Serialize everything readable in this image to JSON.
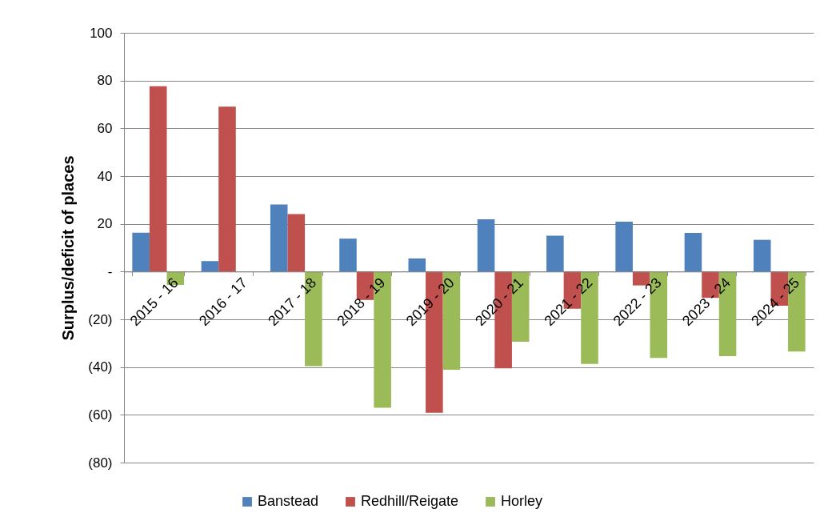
{
  "chart_data": {
    "type": "bar",
    "ylabel": "Surplus/deficit of places",
    "categories": [
      "2015 - 16",
      "2016 - 17",
      "2017 - 18",
      "2018 - 19",
      "2019 - 20",
      "2020 - 21",
      "2021 - 22",
      "2022 - 23",
      "2023 - 24",
      "2024 - 25"
    ],
    "series": [
      {
        "name": "Banstead",
        "color": "#4f81bd",
        "values": [
          16.3,
          4.4,
          28.1,
          13.8,
          5.5,
          21.9,
          15,
          20.9,
          16.2,
          13.3
        ]
      },
      {
        "name": "Redhill/Reigate",
        "color": "#c0504d",
        "values": [
          77.6,
          69.1,
          24.1,
          -11.9,
          -59.1,
          -40.5,
          -15.6,
          -5.8,
          -11,
          -14.3
        ]
      },
      {
        "name": "Horley",
        "color": "#9bbb59",
        "values": [
          -5.6,
          null,
          -39.6,
          -57,
          -41.1,
          -29.4,
          -38.7,
          -36.2,
          -35.4,
          -33.5
        ]
      }
    ],
    "ylim": [
      -80,
      100
    ],
    "yticks": [
      {
        "value": -80,
        "label": "(80)"
      },
      {
        "value": -60,
        "label": "(60)"
      },
      {
        "value": -40,
        "label": "(40)"
      },
      {
        "value": -20,
        "label": "(20)"
      },
      {
        "value": 0,
        "label": "-"
      },
      20,
      40,
      60,
      80,
      100
    ],
    "grid": "y",
    "legend": "bottom"
  }
}
